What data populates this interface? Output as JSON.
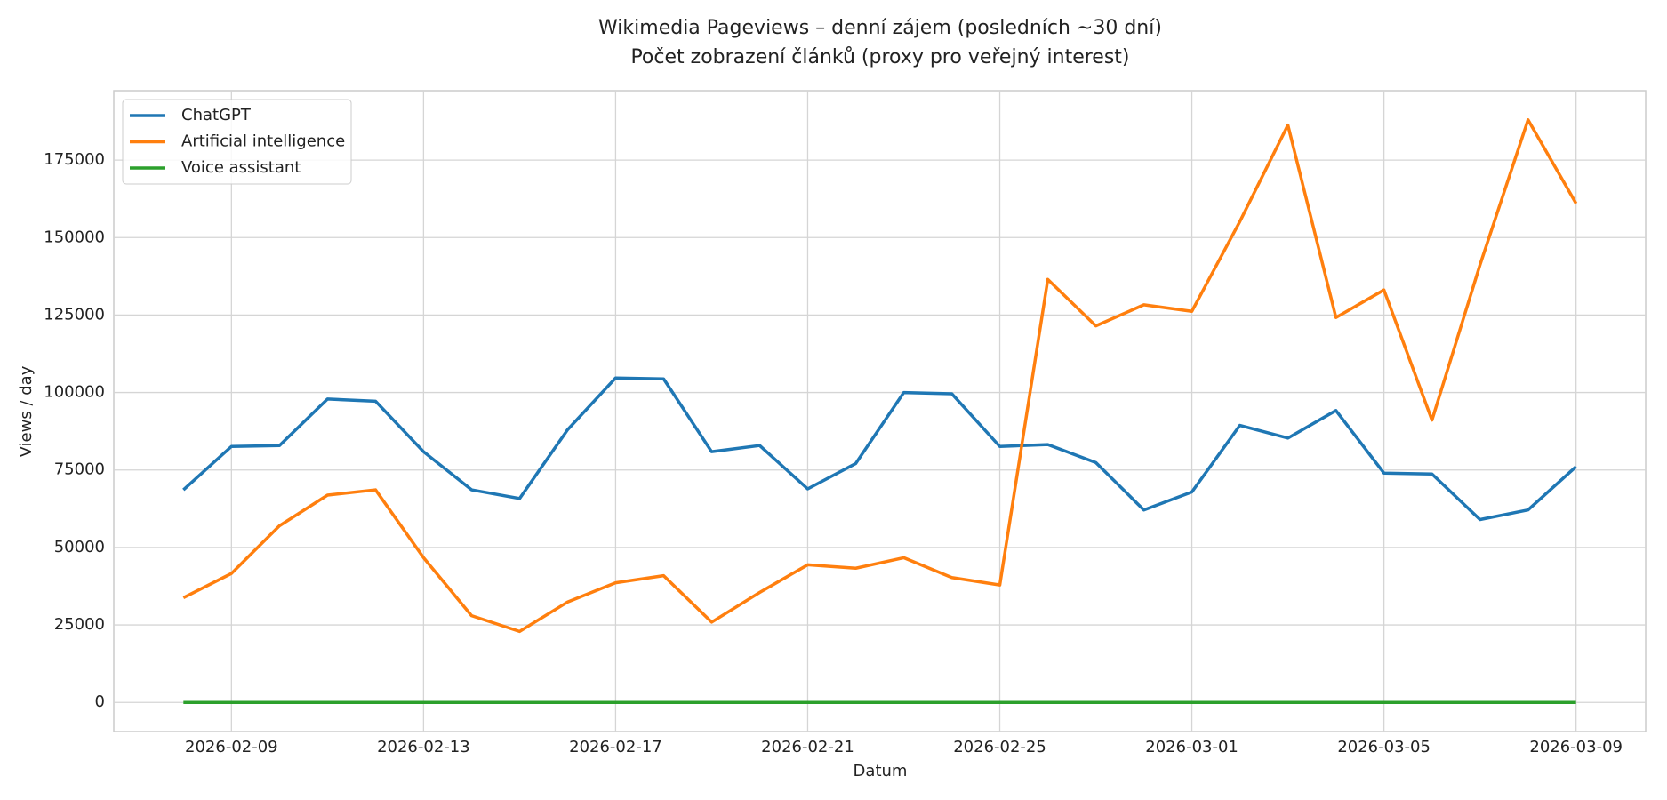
{
  "chart_data": {
    "type": "line",
    "title": "Wikimedia Pageviews – denní zájem (posledních ~30 dní)",
    "subtitle": "Počet zobrazení článků (proxy pro veřejný interest)",
    "x_label": "Datum",
    "y_label": "Views / day",
    "x": [
      "2026-02-08",
      "2026-02-09",
      "2026-02-10",
      "2026-02-11",
      "2026-02-12",
      "2026-02-13",
      "2026-02-14",
      "2026-02-15",
      "2026-02-16",
      "2026-02-17",
      "2026-02-18",
      "2026-02-19",
      "2026-02-20",
      "2026-02-21",
      "2026-02-22",
      "2026-02-23",
      "2026-02-24",
      "2026-02-25",
      "2026-02-26",
      "2026-02-27",
      "2026-02-28",
      "2026-03-01",
      "2026-03-02",
      "2026-03-03",
      "2026-03-04",
      "2026-03-05",
      "2026-03-06",
      "2026-03-07",
      "2026-03-08",
      "2026-03-09"
    ],
    "series": [
      {
        "name": "ChatGPT",
        "color": "#1f77b4",
        "values": [
          68600,
          82600,
          82900,
          97900,
          97200,
          80900,
          68600,
          65800,
          88000,
          104700,
          104400,
          80900,
          82900,
          68900,
          77100,
          100000,
          99600,
          82600,
          83200,
          77400,
          62100,
          67900,
          89400,
          85300,
          94200,
          74000,
          73700,
          59000,
          62100,
          76100
        ]
      },
      {
        "name": "Artificial intelligence",
        "color": "#ff7f0e",
        "values": [
          33800,
          41600,
          57000,
          66900,
          68600,
          46700,
          28000,
          22900,
          32400,
          38600,
          40900,
          25900,
          35500,
          44400,
          43300,
          46700,
          40300,
          37900,
          136500,
          121500,
          128300,
          126200,
          155200,
          186300,
          124200,
          133100,
          91100,
          141200,
          188000,
          161000
        ]
      },
      {
        "name": "Voice assistant",
        "color": "#2ca02c",
        "values": [
          0,
          0,
          0,
          0,
          0,
          0,
          0,
          0,
          0,
          0,
          0,
          0,
          0,
          0,
          0,
          0,
          0,
          0,
          0,
          0,
          0,
          0,
          0,
          0,
          0,
          0,
          0,
          0,
          0,
          0
        ]
      }
    ],
    "xlim": [
      "2026-02-06T13:12",
      "2026-03-10T10:48"
    ],
    "xticks": [
      "2026-02-09",
      "2026-02-13",
      "2026-02-17",
      "2026-02-21",
      "2026-02-25",
      "2026-03-01",
      "2026-03-05",
      "2026-03-09"
    ],
    "ylim": [
      -9400,
      197400
    ],
    "yticks": [
      0,
      25000,
      50000,
      75000,
      100000,
      125000,
      150000,
      175000
    ],
    "grid": true,
    "legend": "upper left"
  }
}
